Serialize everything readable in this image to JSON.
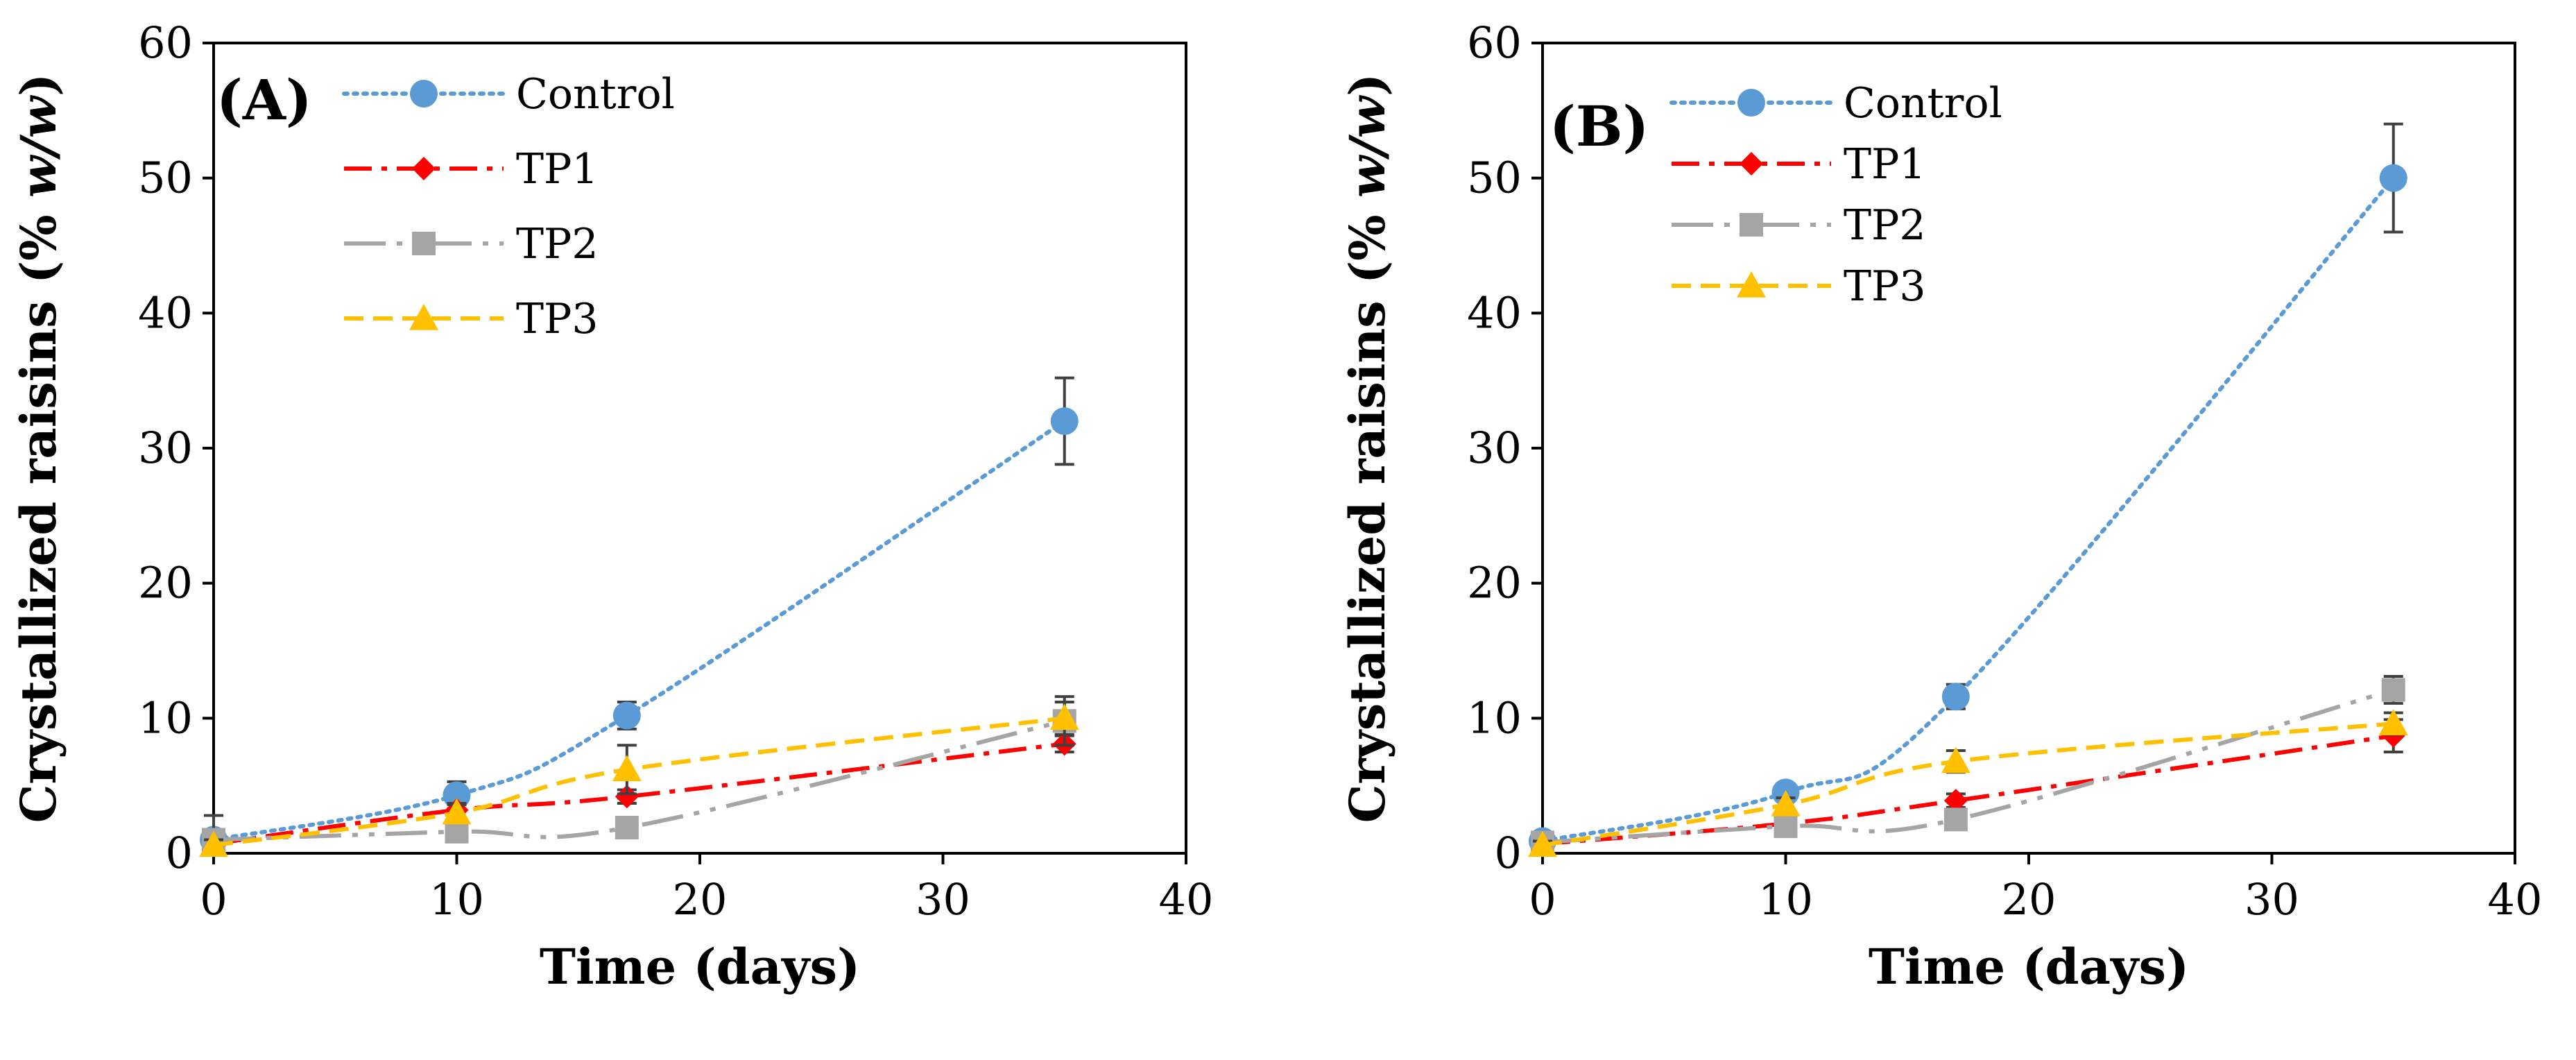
{
  "chart_data": [
    {
      "type": "line",
      "panel_label": "(A)",
      "panel_letter": "A",
      "xlabel": "Time (days)",
      "ylabel_main": "Crystallized raisins (% ",
      "ylabel_italic": "w/w",
      "ylabel_close": ")",
      "xlim": [
        0,
        40
      ],
      "ylim": [
        0,
        60
      ],
      "xticks": [
        "0",
        "10",
        "20",
        "30",
        "40"
      ],
      "yticks": [
        "0",
        "10",
        "20",
        "30",
        "40",
        "50",
        "60"
      ],
      "legend_position": "top-left",
      "x": [
        0,
        10,
        17,
        35
      ],
      "series": [
        {
          "name": "Control",
          "values": [
            1.0,
            4.3,
            10.2,
            32.0
          ],
          "errors": [
            0.4,
            1.0,
            1.0,
            3.2
          ],
          "color": "#5b9bd5",
          "marker": "circle",
          "dash": "dotted"
        },
        {
          "name": "TP1",
          "values": [
            0.7,
            3.2,
            4.2,
            8.1
          ],
          "errors": [
            0.3,
            0.5,
            0.5,
            0.6
          ],
          "color": "#ff0000",
          "marker": "diamond",
          "dash": "dash-dot"
        },
        {
          "name": "TP2",
          "values": [
            1.0,
            1.6,
            1.9,
            9.8
          ],
          "errors": [
            1.8,
            0.6,
            0.6,
            1.8
          ],
          "color": "#a5a5a5",
          "marker": "square",
          "dash": "long-dash-dot-dot"
        },
        {
          "name": "TP3",
          "values": [
            0.6,
            3.0,
            6.2,
            10.0
          ],
          "errors": [
            0.4,
            0.6,
            1.8,
            1.2
          ],
          "color": "#ffc000",
          "marker": "triangle",
          "dash": "dashed"
        }
      ]
    },
    {
      "type": "line",
      "panel_label": "(B)",
      "panel_letter": "B",
      "xlabel": "Time (days)",
      "ylabel_main": "Crystallized raisins (% ",
      "ylabel_italic": "w/w",
      "ylabel_close": ")",
      "xlim": [
        0,
        40
      ],
      "ylim": [
        0,
        60
      ],
      "xticks": [
        "0",
        "10",
        "20",
        "30",
        "40"
      ],
      "yticks": [
        "0",
        "10",
        "20",
        "30",
        "40",
        "50",
        "60"
      ],
      "legend_position": "top-left",
      "x": [
        0,
        10,
        17,
        35
      ],
      "series": [
        {
          "name": "Control",
          "values": [
            0.9,
            4.5,
            11.6,
            50.0
          ],
          "errors": [
            0.4,
            0.6,
            0.9,
            4.0
          ],
          "color": "#5b9bd5",
          "marker": "circle",
          "dash": "dotted"
        },
        {
          "name": "TP1",
          "values": [
            0.7,
            2.2,
            3.9,
            8.7
          ],
          "errors": [
            0.3,
            0.4,
            0.5,
            1.2
          ],
          "color": "#ff0000",
          "marker": "diamond",
          "dash": "dash-dot"
        },
        {
          "name": "TP2",
          "values": [
            0.8,
            2.0,
            2.5,
            12.1
          ],
          "errors": [
            0.4,
            0.5,
            0.6,
            1.0
          ],
          "color": "#a5a5a5",
          "marker": "square",
          "dash": "long-dash-dot-dot"
        },
        {
          "name": "TP3",
          "values": [
            0.6,
            3.6,
            6.8,
            9.6
          ],
          "errors": [
            0.3,
            0.5,
            0.8,
            0.8
          ],
          "color": "#ffc000",
          "marker": "triangle",
          "dash": "dashed"
        }
      ]
    }
  ]
}
